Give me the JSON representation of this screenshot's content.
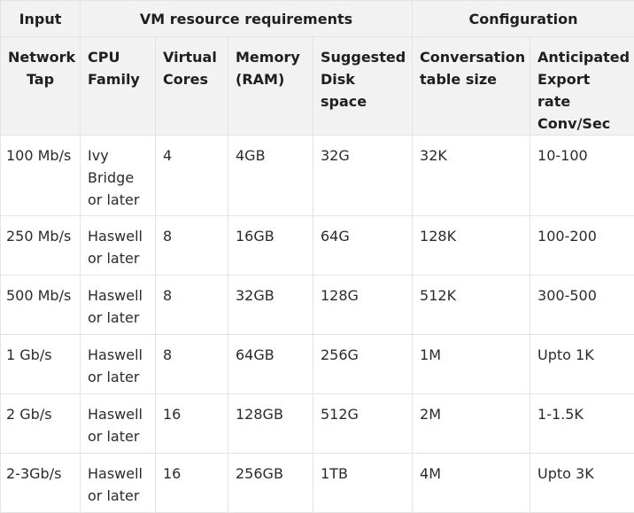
{
  "groups": [
    "Input",
    "VM resource requirements",
    "Configuration"
  ],
  "columns": [
    "Network Tap",
    "CPU Family",
    "Virtual Cores",
    "Memory (RAM)",
    "Suggested Disk space",
    "Conversation table size",
    "Anticipated Export rate Conv/Sec"
  ],
  "rows": [
    [
      "100 Mb/s",
      "Ivy Bridge or later",
      "4",
      "4GB",
      "32G",
      "32K",
      "10-100"
    ],
    [
      "250 Mb/s",
      "Haswell or later",
      "8",
      "16GB",
      "64G",
      "128K",
      "100-200"
    ],
    [
      "500 Mb/s",
      "Haswell or later",
      "8",
      "32GB",
      "128G",
      "512K",
      "300-500"
    ],
    [
      "1 Gb/s",
      "Haswell or later",
      "8",
      "64GB",
      "256G",
      "1M",
      "Upto 1K"
    ],
    [
      "2 Gb/s",
      "Haswell or later",
      "16",
      "128GB",
      "512G",
      "2M",
      "1-1.5K"
    ],
    [
      "2-3Gb/s",
      "Haswell or later",
      "16",
      "256GB",
      "1TB",
      "4M",
      "Upto 3K"
    ]
  ]
}
